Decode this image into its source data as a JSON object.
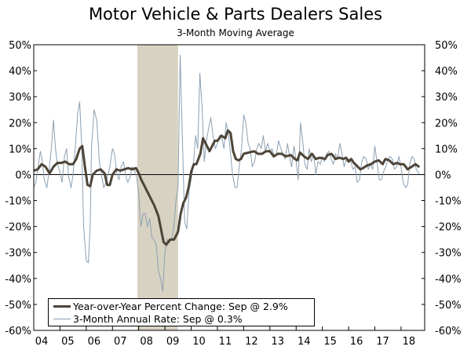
{
  "chart_data": {
    "type": "line",
    "title": "Motor Vehicle & Parts Dealers Sales",
    "subtitle": "3-Month Moving Average",
    "xlabel": "",
    "ylabel": "",
    "x_range": [
      2004.0,
      2018.9
    ],
    "ylim": [
      -60,
      50
    ],
    "y_ticks": [
      50,
      40,
      30,
      20,
      10,
      0,
      -10,
      -20,
      -30,
      -40,
      -50,
      -60
    ],
    "y_tick_labels": [
      "50%",
      "40%",
      "30%",
      "20%",
      "10%",
      "0%",
      "-10%",
      "-20%",
      "-30%",
      "-40%",
      "-50%",
      "-60%"
    ],
    "x_ticks": [
      2004,
      2005,
      2006,
      2007,
      2008,
      2009,
      2010,
      2011,
      2012,
      2013,
      2014,
      2015,
      2016,
      2017,
      2018
    ],
    "x_tick_labels": [
      "04",
      "05",
      "06",
      "07",
      "08",
      "09",
      "10",
      "11",
      "12",
      "13",
      "14",
      "15",
      "16",
      "17",
      "18"
    ],
    "recession_shading": {
      "start": 2007.95,
      "end": 2009.5
    },
    "colors": {
      "yoy": "#4d4438",
      "annual": "#8ca0b2",
      "recession": "#d8d2c2"
    },
    "series": [
      {
        "name": "Year-over-Year Percent Change: Sep @ 2.9%",
        "key": "yoy",
        "points": [
          [
            2004.0,
            1.5
          ],
          [
            2004.15,
            2
          ],
          [
            2004.3,
            4
          ],
          [
            2004.45,
            3
          ],
          [
            2004.6,
            0.5
          ],
          [
            2004.75,
            3
          ],
          [
            2004.9,
            4.5
          ],
          [
            2005.05,
            4.5
          ],
          [
            2005.2,
            5
          ],
          [
            2005.35,
            4
          ],
          [
            2005.5,
            4
          ],
          [
            2005.62,
            6
          ],
          [
            2005.75,
            10
          ],
          [
            2005.85,
            11
          ],
          [
            2005.95,
            3
          ],
          [
            2006.05,
            -4
          ],
          [
            2006.15,
            -4.5
          ],
          [
            2006.25,
            0
          ],
          [
            2006.4,
            1.5
          ],
          [
            2006.55,
            2
          ],
          [
            2006.7,
            0.5
          ],
          [
            2006.8,
            -4
          ],
          [
            2006.9,
            -4
          ],
          [
            2007.0,
            0
          ],
          [
            2007.15,
            2
          ],
          [
            2007.3,
            1.5
          ],
          [
            2007.45,
            2
          ],
          [
            2007.6,
            2.5
          ],
          [
            2007.75,
            2
          ],
          [
            2007.9,
            2.5
          ],
          [
            2008.0,
            0.5
          ],
          [
            2008.1,
            -2
          ],
          [
            2008.2,
            -4
          ],
          [
            2008.3,
            -6
          ],
          [
            2008.45,
            -9
          ],
          [
            2008.6,
            -12
          ],
          [
            2008.75,
            -16
          ],
          [
            2008.85,
            -21
          ],
          [
            2008.95,
            -26
          ],
          [
            2009.05,
            -27
          ],
          [
            2009.2,
            -25
          ],
          [
            2009.35,
            -25
          ],
          [
            2009.5,
            -22
          ],
          [
            2009.6,
            -15
          ],
          [
            2009.7,
            -11
          ],
          [
            2009.8,
            -9
          ],
          [
            2009.9,
            -5
          ],
          [
            2010.0,
            1
          ],
          [
            2010.1,
            4
          ],
          [
            2010.2,
            4
          ],
          [
            2010.35,
            8
          ],
          [
            2010.45,
            14
          ],
          [
            2010.6,
            11
          ],
          [
            2010.7,
            9
          ],
          [
            2010.8,
            11
          ],
          [
            2010.9,
            13
          ],
          [
            2011.0,
            13
          ],
          [
            2011.15,
            15
          ],
          [
            2011.3,
            14
          ],
          [
            2011.4,
            17
          ],
          [
            2011.5,
            16
          ],
          [
            2011.6,
            9
          ],
          [
            2011.7,
            6
          ],
          [
            2011.8,
            5.5
          ],
          [
            2011.9,
            6
          ],
          [
            2012.0,
            8
          ],
          [
            2012.2,
            8.5
          ],
          [
            2012.4,
            9
          ],
          [
            2012.55,
            8
          ],
          [
            2012.7,
            8
          ],
          [
            2012.85,
            9
          ],
          [
            2013.0,
            9
          ],
          [
            2013.15,
            7
          ],
          [
            2013.3,
            8
          ],
          [
            2013.45,
            8
          ],
          [
            2013.6,
            7
          ],
          [
            2013.8,
            7.5
          ],
          [
            2013.95,
            6
          ],
          [
            2014.05,
            5.5
          ],
          [
            2014.15,
            8.5
          ],
          [
            2014.3,
            7
          ],
          [
            2014.45,
            6
          ],
          [
            2014.6,
            8
          ],
          [
            2014.75,
            6
          ],
          [
            2014.9,
            6.5
          ],
          [
            2015.1,
            6
          ],
          [
            2015.2,
            7.5
          ],
          [
            2015.35,
            8
          ],
          [
            2015.5,
            6
          ],
          [
            2015.65,
            6.5
          ],
          [
            2015.8,
            6
          ],
          [
            2015.9,
            6.5
          ],
          [
            2016.0,
            5
          ],
          [
            2016.1,
            6
          ],
          [
            2016.2,
            4.5
          ],
          [
            2016.35,
            3
          ],
          [
            2016.45,
            2
          ],
          [
            2016.55,
            2.5
          ],
          [
            2016.7,
            3.5
          ],
          [
            2016.85,
            4
          ],
          [
            2017.0,
            5
          ],
          [
            2017.15,
            5.5
          ],
          [
            2017.3,
            4
          ],
          [
            2017.4,
            6
          ],
          [
            2017.55,
            5.5
          ],
          [
            2017.7,
            4
          ],
          [
            2017.85,
            4.5
          ],
          [
            2017.95,
            4
          ],
          [
            2018.1,
            4
          ],
          [
            2018.25,
            2
          ],
          [
            2018.4,
            3
          ],
          [
            2018.55,
            4
          ],
          [
            2018.7,
            2.9
          ]
        ]
      },
      {
        "name": "3-Month Annual Rate: Sep @ 0.3%",
        "key": "annual",
        "points": [
          [
            2004.0,
            -5
          ],
          [
            2004.08,
            -3
          ],
          [
            2004.15,
            2
          ],
          [
            2004.25,
            9
          ],
          [
            2004.33,
            5
          ],
          [
            2004.4,
            -2
          ],
          [
            2004.5,
            -5
          ],
          [
            2004.58,
            1
          ],
          [
            2004.67,
            10
          ],
          [
            2004.75,
            21
          ],
          [
            2004.83,
            10
          ],
          [
            2004.9,
            4
          ],
          [
            2005.0,
            1
          ],
          [
            2005.08,
            -3
          ],
          [
            2005.17,
            7
          ],
          [
            2005.25,
            10
          ],
          [
            2005.33,
            -1
          ],
          [
            2005.42,
            -5
          ],
          [
            2005.5,
            0
          ],
          [
            2005.58,
            10
          ],
          [
            2005.67,
            23
          ],
          [
            2005.75,
            28
          ],
          [
            2005.83,
            10
          ],
          [
            2005.9,
            -20
          ],
          [
            2006.0,
            -33
          ],
          [
            2006.08,
            -34
          ],
          [
            2006.15,
            -20
          ],
          [
            2006.2,
            10
          ],
          [
            2006.3,
            25
          ],
          [
            2006.4,
            21
          ],
          [
            2006.5,
            5
          ],
          [
            2006.58,
            0
          ],
          [
            2006.67,
            -5
          ],
          [
            2006.75,
            -3
          ],
          [
            2006.83,
            0
          ],
          [
            2006.9,
            3
          ],
          [
            2007.0,
            10
          ],
          [
            2007.08,
            8
          ],
          [
            2007.17,
            0
          ],
          [
            2007.25,
            -2
          ],
          [
            2007.33,
            3
          ],
          [
            2007.42,
            5
          ],
          [
            2007.5,
            0
          ],
          [
            2007.58,
            -3
          ],
          [
            2007.67,
            -1
          ],
          [
            2007.75,
            3
          ],
          [
            2007.83,
            2
          ],
          [
            2007.92,
            -1
          ],
          [
            2008.0,
            -7
          ],
          [
            2008.08,
            -20
          ],
          [
            2008.17,
            -15
          ],
          [
            2008.25,
            -15
          ],
          [
            2008.33,
            -20
          ],
          [
            2008.42,
            -17
          ],
          [
            2008.5,
            -24
          ],
          [
            2008.58,
            -25
          ],
          [
            2008.67,
            -27
          ],
          [
            2008.75,
            -37
          ],
          [
            2008.83,
            -40
          ],
          [
            2008.92,
            -45
          ],
          [
            2009.0,
            -30
          ],
          [
            2009.08,
            -25
          ],
          [
            2009.17,
            -26
          ],
          [
            2009.25,
            -25
          ],
          [
            2009.33,
            -21
          ],
          [
            2009.42,
            -10
          ],
          [
            2009.5,
            -5
          ],
          [
            2009.58,
            46
          ],
          [
            2009.67,
            12
          ],
          [
            2009.75,
            -18
          ],
          [
            2009.83,
            -21
          ],
          [
            2009.92,
            -6
          ],
          [
            2010.0,
            -2
          ],
          [
            2010.08,
            3
          ],
          [
            2010.17,
            15
          ],
          [
            2010.25,
            10
          ],
          [
            2010.33,
            39
          ],
          [
            2010.42,
            25
          ],
          [
            2010.5,
            5
          ],
          [
            2010.58,
            13
          ],
          [
            2010.67,
            18
          ],
          [
            2010.75,
            22
          ],
          [
            2010.83,
            15
          ],
          [
            2010.92,
            10
          ],
          [
            2011.0,
            12
          ],
          [
            2011.08,
            15
          ],
          [
            2011.17,
            14
          ],
          [
            2011.25,
            10
          ],
          [
            2011.33,
            20
          ],
          [
            2011.42,
            16
          ],
          [
            2011.5,
            8
          ],
          [
            2011.58,
            0
          ],
          [
            2011.67,
            -5
          ],
          [
            2011.75,
            -5
          ],
          [
            2011.83,
            3
          ],
          [
            2011.92,
            10
          ],
          [
            2012.0,
            23
          ],
          [
            2012.08,
            20
          ],
          [
            2012.17,
            12
          ],
          [
            2012.25,
            10
          ],
          [
            2012.33,
            3
          ],
          [
            2012.42,
            5
          ],
          [
            2012.5,
            10
          ],
          [
            2012.58,
            12
          ],
          [
            2012.67,
            10
          ],
          [
            2012.75,
            15
          ],
          [
            2012.83,
            9
          ],
          [
            2012.92,
            12
          ],
          [
            2013.0,
            9
          ],
          [
            2013.08,
            10
          ],
          [
            2013.17,
            7
          ],
          [
            2013.25,
            8
          ],
          [
            2013.33,
            13
          ],
          [
            2013.42,
            10
          ],
          [
            2013.5,
            8
          ],
          [
            2013.58,
            6
          ],
          [
            2013.67,
            12
          ],
          [
            2013.75,
            7
          ],
          [
            2013.83,
            3
          ],
          [
            2013.92,
            11
          ],
          [
            2014.0,
            5
          ],
          [
            2014.08,
            -2
          ],
          [
            2014.17,
            20
          ],
          [
            2014.25,
            13
          ],
          [
            2014.33,
            4
          ],
          [
            2014.42,
            2
          ],
          [
            2014.5,
            10
          ],
          [
            2014.58,
            5
          ],
          [
            2014.67,
            8
          ],
          [
            2014.75,
            0
          ],
          [
            2014.83,
            5
          ],
          [
            2014.92,
            4
          ],
          [
            2015.0,
            7
          ],
          [
            2015.08,
            5
          ],
          [
            2015.17,
            8
          ],
          [
            2015.25,
            9
          ],
          [
            2015.33,
            6
          ],
          [
            2015.42,
            4
          ],
          [
            2015.5,
            8
          ],
          [
            2015.58,
            6
          ],
          [
            2015.67,
            12
          ],
          [
            2015.75,
            8
          ],
          [
            2015.83,
            3
          ],
          [
            2015.92,
            6
          ],
          [
            2016.0,
            6
          ],
          [
            2016.08,
            5
          ],
          [
            2016.17,
            2
          ],
          [
            2016.25,
            3
          ],
          [
            2016.33,
            -3
          ],
          [
            2016.42,
            -2
          ],
          [
            2016.5,
            5
          ],
          [
            2016.58,
            7
          ],
          [
            2016.67,
            6
          ],
          [
            2016.75,
            2
          ],
          [
            2016.83,
            4
          ],
          [
            2016.92,
            2
          ],
          [
            2017.0,
            11
          ],
          [
            2017.08,
            5
          ],
          [
            2017.17,
            -2
          ],
          [
            2017.25,
            -2
          ],
          [
            2017.33,
            1
          ],
          [
            2017.42,
            3
          ],
          [
            2017.5,
            6
          ],
          [
            2017.58,
            7
          ],
          [
            2017.67,
            6
          ],
          [
            2017.75,
            2
          ],
          [
            2017.83,
            3
          ],
          [
            2017.92,
            7
          ],
          [
            2018.0,
            3
          ],
          [
            2018.08,
            -3
          ],
          [
            2018.17,
            -5
          ],
          [
            2018.25,
            -4
          ],
          [
            2018.33,
            4
          ],
          [
            2018.42,
            7
          ],
          [
            2018.5,
            6
          ],
          [
            2018.58,
            2
          ],
          [
            2018.7,
            0.3
          ]
        ]
      }
    ]
  }
}
